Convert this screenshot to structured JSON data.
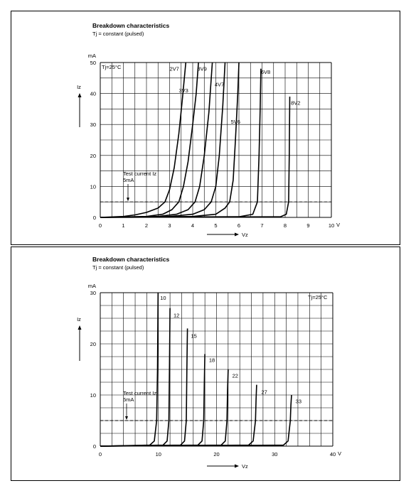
{
  "chart_data": [
    {
      "type": "line",
      "title": "Breakdown characteristics",
      "subtitle": "Tj = constant (pulsed)",
      "temp_label": "Tj=25°C",
      "xlabel": "Vz",
      "x_unit": "V",
      "ylabel": "Iz",
      "y_unit": "mA",
      "xlim": [
        0,
        10
      ],
      "ylim": [
        0,
        50
      ],
      "x_ticks": [
        0,
        1,
        2,
        3,
        4,
        5,
        6,
        7,
        8,
        9,
        10
      ],
      "y_ticks": [
        0,
        10,
        20,
        30,
        40,
        50
      ],
      "grid": true,
      "test_current_label_1": "Test current Iz",
      "test_current_label_2": "5mA",
      "test_current": 5,
      "series": [
        {
          "name": "2V7",
          "label_at": [
            3.0,
            48
          ],
          "points": [
            [
              0,
              0
            ],
            [
              1,
              0.3
            ],
            [
              1.5,
              0.8
            ],
            [
              2,
              1.6
            ],
            [
              2.5,
              3
            ],
            [
              2.8,
              5
            ],
            [
              3.0,
              9
            ],
            [
              3.2,
              16
            ],
            [
              3.4,
              27
            ],
            [
              3.55,
              38
            ],
            [
              3.7,
              50
            ]
          ]
        },
        {
          "name": "3V3",
          "label_at": [
            3.4,
            41
          ],
          "points": [
            [
              0,
              0
            ],
            [
              2,
              0.3
            ],
            [
              2.7,
              1
            ],
            [
              3.1,
              2.5
            ],
            [
              3.4,
              5
            ],
            [
              3.6,
              10
            ],
            [
              3.8,
              18
            ],
            [
              4.0,
              30
            ],
            [
              4.15,
              40
            ],
            [
              4.25,
              50
            ]
          ]
        },
        {
          "name": "3V9",
          "label_at": [
            4.2,
            48
          ],
          "points": [
            [
              0,
              0
            ],
            [
              2.5,
              0.3
            ],
            [
              3.3,
              1
            ],
            [
              3.8,
              2.5
            ],
            [
              4.1,
              5
            ],
            [
              4.3,
              10
            ],
            [
              4.5,
              20
            ],
            [
              4.7,
              34
            ],
            [
              4.85,
              50
            ]
          ]
        },
        {
          "name": "4V7",
          "label_at": [
            4.95,
            43
          ],
          "points": [
            [
              0,
              0
            ],
            [
              3,
              0.3
            ],
            [
              4,
              1
            ],
            [
              4.5,
              2.5
            ],
            [
              4.8,
              5
            ],
            [
              5.0,
              10
            ],
            [
              5.15,
              20
            ],
            [
              5.3,
              36
            ],
            [
              5.4,
              50
            ]
          ]
        },
        {
          "name": "5V6",
          "label_at": [
            5.65,
            31
          ],
          "points": [
            [
              0,
              0
            ],
            [
              4,
              0.3
            ],
            [
              5,
              1
            ],
            [
              5.4,
              3
            ],
            [
              5.6,
              5
            ],
            [
              5.75,
              12
            ],
            [
              5.85,
              25
            ],
            [
              5.95,
              40
            ],
            [
              6.0,
              50
            ]
          ]
        },
        {
          "name": "6V8",
          "label_at": [
            6.95,
            47
          ],
          "points": [
            [
              0,
              0
            ],
            [
              6,
              0.2
            ],
            [
              6.6,
              1
            ],
            [
              6.8,
              5
            ],
            [
              6.87,
              20
            ],
            [
              6.92,
              35
            ],
            [
              6.95,
              48
            ]
          ]
        },
        {
          "name": "8V2",
          "label_at": [
            8.25,
            37
          ],
          "points": [
            [
              0,
              0
            ],
            [
              7.8,
              0.2
            ],
            [
              8.05,
              1
            ],
            [
              8.15,
              5
            ],
            [
              8.18,
              20
            ],
            [
              8.2,
              39
            ]
          ]
        }
      ]
    },
    {
      "type": "line",
      "title": "Breakdown characteristics",
      "subtitle": "Tj = constant (pulsed)",
      "temp_label": "Tj=25°C",
      "xlabel": "Vz",
      "x_unit": "V",
      "ylabel": "Iz",
      "y_unit": "mA",
      "xlim": [
        0,
        40
      ],
      "ylim": [
        0,
        30
      ],
      "x_ticks": [
        0,
        10,
        20,
        30,
        40
      ],
      "x_tick_labels": [
        "0",
        "10",
        "20",
        "30",
        "40"
      ],
      "y_ticks": [
        0,
        10,
        20,
        30
      ],
      "grid": true,
      "test_current_label_1": "Test current Iz",
      "test_current_label_2": "5mA",
      "test_current": 5,
      "series": [
        {
          "name": "10",
          "label_at": [
            10.3,
            29
          ],
          "points": [
            [
              0,
              0
            ],
            [
              8.5,
              0.2
            ],
            [
              9.3,
              1
            ],
            [
              9.7,
              5
            ],
            [
              9.85,
              15
            ],
            [
              9.95,
              30
            ]
          ]
        },
        {
          "name": "12",
          "label_at": [
            12.6,
            25.6
          ],
          "points": [
            [
              0,
              0
            ],
            [
              10.8,
              0.2
            ],
            [
              11.5,
              1
            ],
            [
              11.8,
              5
            ],
            [
              11.9,
              15
            ],
            [
              12.0,
              27
            ]
          ]
        },
        {
          "name": "15",
          "label_at": [
            15.6,
            21.6
          ],
          "points": [
            [
              0,
              0
            ],
            [
              13.8,
              0.2
            ],
            [
              14.5,
              1
            ],
            [
              14.8,
              5
            ],
            [
              14.9,
              15
            ],
            [
              15.0,
              23
            ]
          ]
        },
        {
          "name": "18",
          "label_at": [
            18.7,
            16.9
          ],
          "points": [
            [
              0,
              0
            ],
            [
              16.8,
              0.2
            ],
            [
              17.5,
              1
            ],
            [
              17.8,
              5
            ],
            [
              17.9,
              12
            ],
            [
              18.0,
              18
            ]
          ]
        },
        {
          "name": "22",
          "label_at": [
            22.7,
            13.8
          ],
          "points": [
            [
              0,
              0
            ],
            [
              20.8,
              0.2
            ],
            [
              21.5,
              1
            ],
            [
              21.8,
              5
            ],
            [
              21.9,
              11
            ],
            [
              22.0,
              15
            ]
          ]
        },
        {
          "name": "27",
          "label_at": [
            27.7,
            10.6
          ],
          "points": [
            [
              0,
              0
            ],
            [
              25.5,
              0.2
            ],
            [
              26.3,
              1
            ],
            [
              26.7,
              5
            ],
            [
              26.8,
              9
            ],
            [
              26.9,
              12
            ]
          ]
        },
        {
          "name": "33",
          "label_at": [
            33.6,
            8.8
          ],
          "points": [
            [
              0,
              0
            ],
            [
              31.5,
              0.2
            ],
            [
              32.3,
              1
            ],
            [
              32.7,
              5
            ],
            [
              32.8,
              8
            ],
            [
              32.9,
              10
            ]
          ]
        }
      ]
    }
  ]
}
